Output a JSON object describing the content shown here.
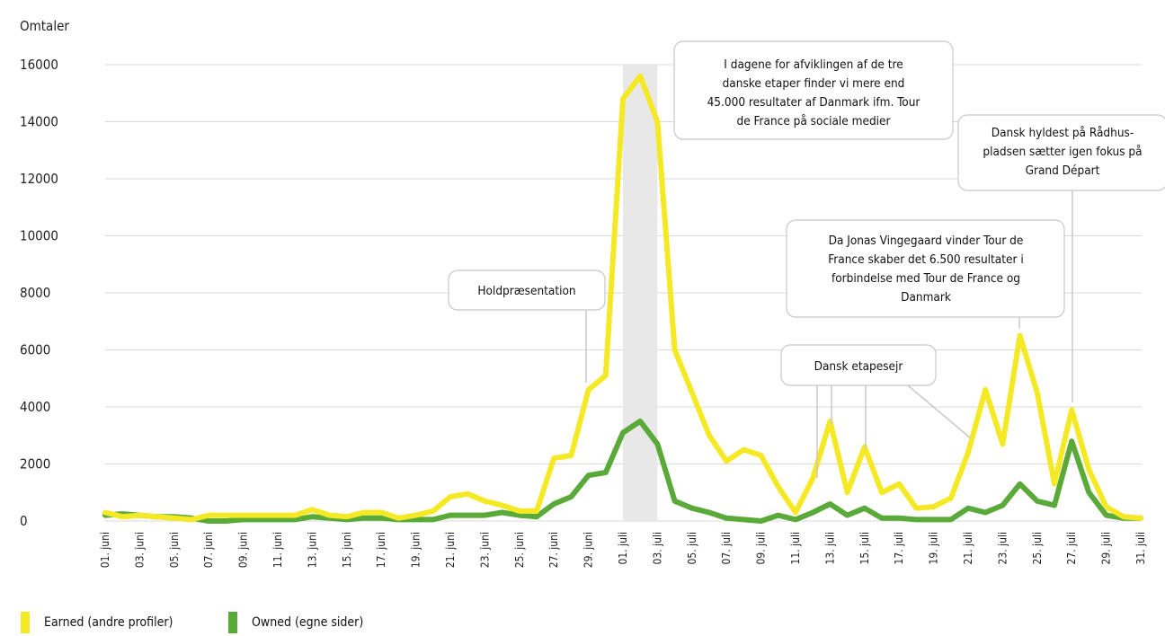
{
  "chart_data": {
    "type": "line",
    "ylabel": "Omtaler",
    "ylim": [
      0,
      16000
    ],
    "yticks": [
      0,
      2000,
      4000,
      6000,
      8000,
      10000,
      12000,
      14000,
      16000
    ],
    "grid": true,
    "legend_position": "bottom-left",
    "x": [
      "01. juni",
      "02. juni",
      "03. juni",
      "04. juni",
      "05. juni",
      "06. juni",
      "07. juni",
      "08. juni",
      "09. juni",
      "10. juni",
      "11. juni",
      "12. juni",
      "13. juni",
      "14. juni",
      "15. juni",
      "16. juni",
      "17. juni",
      "18. juni",
      "19. juni",
      "20. juni",
      "21. juni",
      "22. juni",
      "23. juni",
      "24. juni",
      "25. juni",
      "26. juni",
      "27. juni",
      "28. juni",
      "29. juni",
      "30. juni",
      "01. juli",
      "02. juli",
      "03. juli",
      "04. juli",
      "05. juli",
      "06. juli",
      "07. juli",
      "08. juli",
      "09. juli",
      "10. juli",
      "11. juli",
      "12. juli",
      "13. juli",
      "14. juli",
      "15. juli",
      "16. juli",
      "17. juli",
      "18. juli",
      "19. juli",
      "20. juli",
      "21. juli",
      "22. juli",
      "23. juli",
      "24. juli",
      "25. juli",
      "26. juli",
      "27. juli",
      "28. juli",
      "29. juli",
      "30. juli",
      "31. juli"
    ],
    "xticks": [
      "01. juni",
      "03. juni",
      "05. juni",
      "07. juni",
      "09. juni",
      "11. juni",
      "13. juni",
      "15. juni",
      "17. juni",
      "19. juni",
      "21. juni",
      "23. juni",
      "25. juni",
      "27. juni",
      "29. juni",
      "01. juli",
      "03. juli",
      "05. juli",
      "07. juli",
      "09. juli",
      "11. juli",
      "13. juli",
      "15. juli",
      "17. juli",
      "19. juli",
      "21. juli",
      "23. juli",
      "25. juli",
      "27. juli",
      "29. juli",
      "31. juli"
    ],
    "series": [
      {
        "name": "Earned (andre profiler)",
        "color": "#f5e926",
        "values": [
          300,
          150,
          200,
          150,
          100,
          50,
          200,
          200,
          200,
          200,
          200,
          200,
          400,
          200,
          150,
          300,
          300,
          100,
          200,
          350,
          850,
          950,
          700,
          550,
          350,
          350,
          2200,
          2300,
          4600,
          5100,
          14800,
          15600,
          14000,
          6000,
          4500,
          3000,
          2100,
          2500,
          2300,
          1200,
          300,
          1500,
          3500,
          1000,
          2600,
          1000,
          1300,
          450,
          500,
          800,
          2400,
          4600,
          2700,
          6500,
          4500,
          1300,
          3900,
          1800,
          500,
          150,
          100
        ]
      },
      {
        "name": "Owned (egne sider)",
        "color": "#5aaa3a",
        "values": [
          200,
          250,
          200,
          150,
          150,
          100,
          0,
          0,
          50,
          50,
          50,
          50,
          150,
          100,
          50,
          100,
          100,
          50,
          50,
          50,
          200,
          200,
          200,
          300,
          200,
          150,
          600,
          850,
          1600,
          1700,
          3100,
          3500,
          2700,
          700,
          450,
          300,
          100,
          50,
          0,
          200,
          50,
          300,
          600,
          200,
          450,
          100,
          100,
          50,
          50,
          50,
          450,
          300,
          550,
          1300,
          700,
          550,
          2800,
          1000,
          200,
          100,
          100
        ]
      }
    ],
    "highlight_band": [
      "01. juli",
      "03. juli"
    ],
    "annotations": [
      {
        "text": [
          "Holdpræsentation"
        ],
        "x": "29. juni",
        "points_to": [
          "29. juni"
        ]
      },
      {
        "text": [
          "I dagene for afviklingen af de tre",
          "danske etaper finder vi mere end",
          "45.000 resultater af Danmark ifm. Tour",
          "de France på sociale medier"
        ],
        "x": "03. juli",
        "points_to": []
      },
      {
        "text": [
          "Dansk hyldest på Rådhus-",
          "pladsen sætter igen fokus på",
          "Grand Départ"
        ],
        "x": "27. juli",
        "points_to": [
          "27. juli"
        ]
      },
      {
        "text": [
          "Da Jonas Vingegaard vinder Tour de",
          "France skaber det 6.500 resultater i",
          "forbindelse med Tour de France og",
          "Danmark"
        ],
        "x": "24. juli",
        "points_to": [
          "24. juli"
        ]
      },
      {
        "text": [
          "Dansk etapesejr"
        ],
        "x": "13. juli",
        "points_to": [
          "12. juli",
          "13. juli",
          "15. juli",
          "22. juli"
        ]
      }
    ]
  }
}
